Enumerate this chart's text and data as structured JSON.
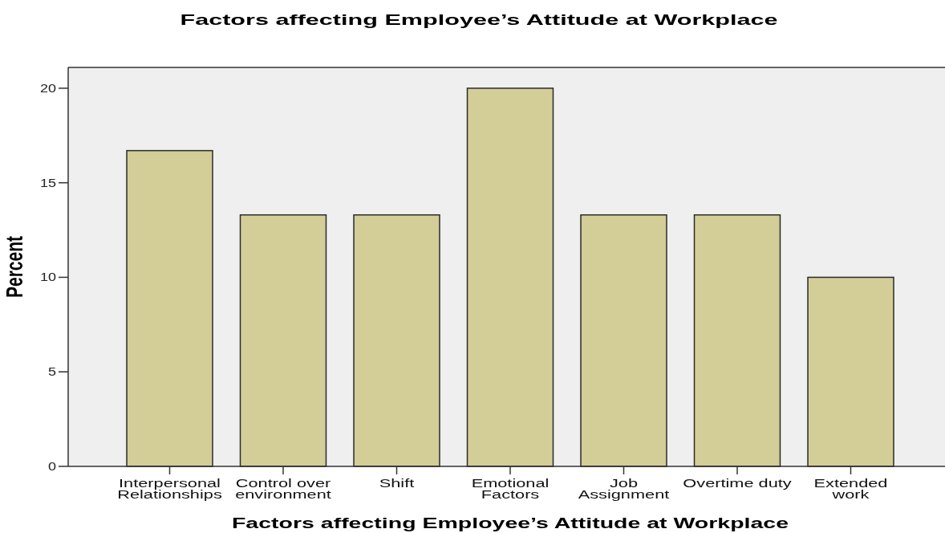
{
  "chart_data": {
    "type": "bar",
    "title": "Factors affecting Employee’s Attitude at Workplace",
    "xlabel": "Factors affecting Employee’s Attitude at Workplace",
    "ylabel": "Percent",
    "categories": [
      "Interpersonal\nRelationships",
      "Control over\nenvironment",
      "Shift",
      "Emotional\nFactors",
      "Job\nAssignment",
      "Overtime duty",
      "Extended\nwork"
    ],
    "values": [
      16.7,
      13.3,
      13.3,
      20.0,
      13.3,
      13.3,
      10.0
    ],
    "color": "#d3cd98",
    "ylim": [
      0,
      21.1
    ],
    "yticks": [
      0,
      5,
      10,
      15,
      20
    ]
  }
}
